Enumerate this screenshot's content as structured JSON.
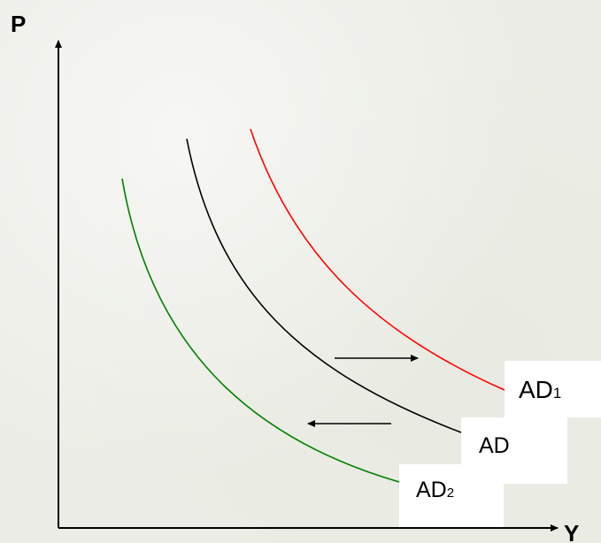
{
  "axes": {
    "y_label": "P",
    "x_label": "Y"
  },
  "curves": {
    "ad": {
      "label": "AD",
      "color": "#000000"
    },
    "ad1": {
      "label": "AD",
      "subscript": "1",
      "color": "#ff0000"
    },
    "ad2": {
      "label": "AD",
      "subscript": "2",
      "color": "#008000"
    }
  },
  "shifts": {
    "rightward": "right-arrow-icon",
    "leftward": "left-arrow-icon"
  }
}
